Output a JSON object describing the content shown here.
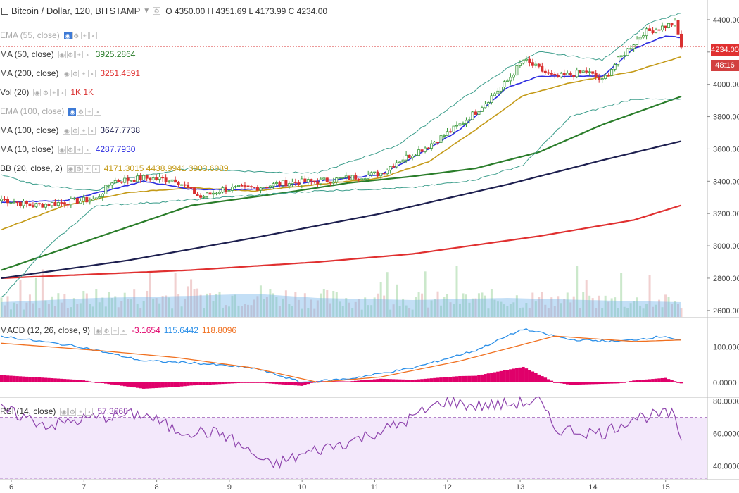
{
  "symbol": {
    "title": "Bitcoin / Dollar, 120, BITSTAMP",
    "o_label": "O",
    "o": "4350.00",
    "h_label": "H",
    "h": "4351.69",
    "l_label": "L",
    "l": "4173.99",
    "c_label": "C",
    "c": "4234.00"
  },
  "legends": [
    {
      "name": "EMA (55, close)",
      "dim": true,
      "value": "",
      "color": "#aaaaaa"
    },
    {
      "name": "MA (50, close)",
      "dim": false,
      "value": "3925.2864",
      "color": "#2a7d2a"
    },
    {
      "name": "MA (200, close)",
      "dim": false,
      "value": "3251.4591",
      "color": "#e03030"
    },
    {
      "name": "Vol (20)",
      "dim": false,
      "value": "1K  1K",
      "color": "#d93030"
    },
    {
      "name": "EMA (100, close)",
      "dim": true,
      "value": "",
      "color": "#aaaaaa"
    },
    {
      "name": "MA (100, close)",
      "dim": false,
      "value": "3647.7738",
      "color": "#1d1f4f"
    },
    {
      "name": "MA (10, close)",
      "dim": false,
      "value": "4287.7930",
      "color": "#2c2ce0"
    },
    {
      "name": "BB (20, close, 2)",
      "dim": false,
      "value": "4171.3015  4438.9941  3903.6089",
      "color": "#c49a17"
    }
  ],
  "macd_legend": {
    "name": "MACD (12, 26, close, 9)",
    "v1": "-3.1654",
    "v2": "115.6442",
    "v3": "118.8096"
  },
  "rsi_legend": {
    "name": "RSI (14, close)",
    "value": "57.3668"
  },
  "price_tag": {
    "price": "4234.00",
    "countdown": "48:16"
  },
  "colors": {
    "up": "#3c9a3c",
    "down": "#d93030",
    "ma10": "#2c2ce0",
    "ma20": "#c49a17",
    "ma50": "#2a7d2a",
    "ma100": "#1d1f4f",
    "ma200": "#e03030",
    "bb": "#3d9e8c",
    "macd": "#2b8fe8",
    "signal": "#f07020",
    "hist": "#e0006a",
    "rsi": "#8e44ad"
  },
  "chart_data": {
    "type": "candlestick",
    "title": "Bitcoin / Dollar, 120, BITSTAMP",
    "x_ticks": [
      "6",
      "7",
      "8",
      "9",
      "10",
      "11",
      "12",
      "13",
      "14",
      "15"
    ],
    "price_axis": {
      "ticks": [
        4400,
        4200,
        4000,
        3800,
        3600,
        3400,
        3200,
        3000,
        2800,
        2600
      ],
      "tick_labels": [
        "4400.00",
        "4200.00",
        "4000.00",
        "3800.00",
        "3600.00",
        "3400.00",
        "3200.00",
        "3000.00",
        "2800.00",
        "2600.00"
      ],
      "range": [
        2560,
        4500
      ]
    },
    "macd_axis": {
      "ticks": [
        100,
        0
      ],
      "tick_labels": [
        "100.0000",
        "0.0000"
      ],
      "range": [
        -40,
        180
      ]
    },
    "rsi_axis": {
      "ticks": [
        80,
        60,
        40
      ],
      "tick_labels": [
        "80.0000",
        "60.0000",
        "40.0000"
      ],
      "range": [
        32,
        82
      ],
      "band": [
        30,
        70
      ]
    },
    "close_keypoints": [
      [
        0,
        3290
      ],
      [
        10,
        3250
      ],
      [
        20,
        3270
      ],
      [
        30,
        3290
      ],
      [
        35,
        3400
      ],
      [
        45,
        3420
      ],
      [
        55,
        3410
      ],
      [
        63,
        3300
      ],
      [
        70,
        3350
      ],
      [
        80,
        3360
      ],
      [
        90,
        3390
      ],
      [
        100,
        3400
      ],
      [
        110,
        3420
      ],
      [
        120,
        3450
      ],
      [
        125,
        3520
      ],
      [
        135,
        3620
      ],
      [
        145,
        3750
      ],
      [
        150,
        3830
      ],
      [
        160,
        4020
      ],
      [
        165,
        4150
      ],
      [
        175,
        4040
      ],
      [
        185,
        4080
      ],
      [
        190,
        4020
      ],
      [
        195,
        4150
      ],
      [
        203,
        4320
      ],
      [
        210,
        4360
      ],
      [
        213,
        4380
      ],
      [
        215,
        4234
      ]
    ],
    "ma10_keypoints": [
      [
        0,
        3270
      ],
      [
        20,
        3280
      ],
      [
        35,
        3350
      ],
      [
        45,
        3400
      ],
      [
        60,
        3350
      ],
      [
        80,
        3350
      ],
      [
        100,
        3400
      ],
      [
        120,
        3440
      ],
      [
        135,
        3600
      ],
      [
        145,
        3720
      ],
      [
        160,
        3980
      ],
      [
        170,
        4050
      ],
      [
        190,
        4050
      ],
      [
        200,
        4220
      ],
      [
        210,
        4300
      ],
      [
        215,
        4288
      ]
    ],
    "ma20_keypoints": [
      [
        0,
        3100
      ],
      [
        20,
        3250
      ],
      [
        40,
        3330
      ],
      [
        60,
        3360
      ],
      [
        80,
        3340
      ],
      [
        100,
        3380
      ],
      [
        120,
        3420
      ],
      [
        135,
        3520
      ],
      [
        150,
        3720
      ],
      [
        165,
        3930
      ],
      [
        180,
        4010
      ],
      [
        200,
        4080
      ],
      [
        215,
        4171
      ]
    ],
    "ma50_keypoints": [
      [
        0,
        2850
      ],
      [
        30,
        3050
      ],
      [
        60,
        3250
      ],
      [
        90,
        3330
      ],
      [
        110,
        3390
      ],
      [
        130,
        3430
      ],
      [
        150,
        3480
      ],
      [
        170,
        3580
      ],
      [
        190,
        3750
      ],
      [
        215,
        3925
      ]
    ],
    "ma100_keypoints": [
      [
        0,
        2800
      ],
      [
        40,
        2910
      ],
      [
        80,
        3050
      ],
      [
        120,
        3200
      ],
      [
        160,
        3380
      ],
      [
        190,
        3530
      ],
      [
        215,
        3648
      ]
    ],
    "ma200_keypoints": [
      [
        0,
        2800
      ],
      [
        60,
        2850
      ],
      [
        100,
        2900
      ],
      [
        130,
        2950
      ],
      [
        170,
        3060
      ],
      [
        200,
        3160
      ],
      [
        215,
        3251
      ]
    ],
    "bb_upper_keypoints": [
      [
        0,
        3440
      ],
      [
        10,
        3380
      ],
      [
        30,
        3340
      ],
      [
        40,
        3420
      ],
      [
        60,
        3480
      ],
      [
        80,
        3460
      ],
      [
        100,
        3450
      ],
      [
        125,
        3620
      ],
      [
        145,
        3900
      ],
      [
        160,
        4100
      ],
      [
        170,
        4200
      ],
      [
        190,
        4150
      ],
      [
        205,
        4380
      ],
      [
        215,
        4439
      ]
    ],
    "bb_lower_keypoints": [
      [
        0,
        2680
      ],
      [
        15,
        3000
      ],
      [
        30,
        3250
      ],
      [
        50,
        3270
      ],
      [
        70,
        3300
      ],
      [
        100,
        3340
      ],
      [
        130,
        3360
      ],
      [
        150,
        3410
      ],
      [
        165,
        3500
      ],
      [
        180,
        3800
      ],
      [
        200,
        3910
      ],
      [
        215,
        3904
      ]
    ],
    "volume_keypoints": [
      [
        0,
        0.35
      ],
      [
        30,
        0.45
      ],
      [
        60,
        0.5
      ],
      [
        80,
        0.55
      ],
      [
        100,
        0.45
      ],
      [
        130,
        0.4
      ],
      [
        160,
        0.45
      ],
      [
        185,
        0.4
      ],
      [
        215,
        0.35
      ]
    ],
    "macd_keypoints": [
      [
        0,
        130
      ],
      [
        25,
        100
      ],
      [
        45,
        60
      ],
      [
        60,
        55
      ],
      [
        80,
        40
      ],
      [
        95,
        0
      ],
      [
        110,
        10
      ],
      [
        130,
        40
      ],
      [
        150,
        90
      ],
      [
        165,
        150
      ],
      [
        180,
        120
      ],
      [
        195,
        115
      ],
      [
        210,
        130
      ],
      [
        215,
        116
      ]
    ],
    "signal_keypoints": [
      [
        0,
        110
      ],
      [
        30,
        90
      ],
      [
        55,
        70
      ],
      [
        80,
        40
      ],
      [
        100,
        0
      ],
      [
        120,
        15
      ],
      [
        145,
        60
      ],
      [
        175,
        130
      ],
      [
        200,
        115
      ],
      [
        215,
        119
      ]
    ],
    "rsi_keypoints": [
      [
        0,
        75
      ],
      [
        15,
        65
      ],
      [
        30,
        70
      ],
      [
        45,
        72
      ],
      [
        55,
        62
      ],
      [
        70,
        60
      ],
      [
        85,
        40
      ],
      [
        100,
        50
      ],
      [
        110,
        55
      ],
      [
        125,
        65
      ],
      [
        140,
        80
      ],
      [
        150,
        77
      ],
      [
        160,
        78
      ],
      [
        170,
        80
      ],
      [
        175,
        63
      ],
      [
        190,
        60
      ],
      [
        200,
        70
      ],
      [
        212,
        72
      ],
      [
        215,
        57
      ]
    ]
  }
}
